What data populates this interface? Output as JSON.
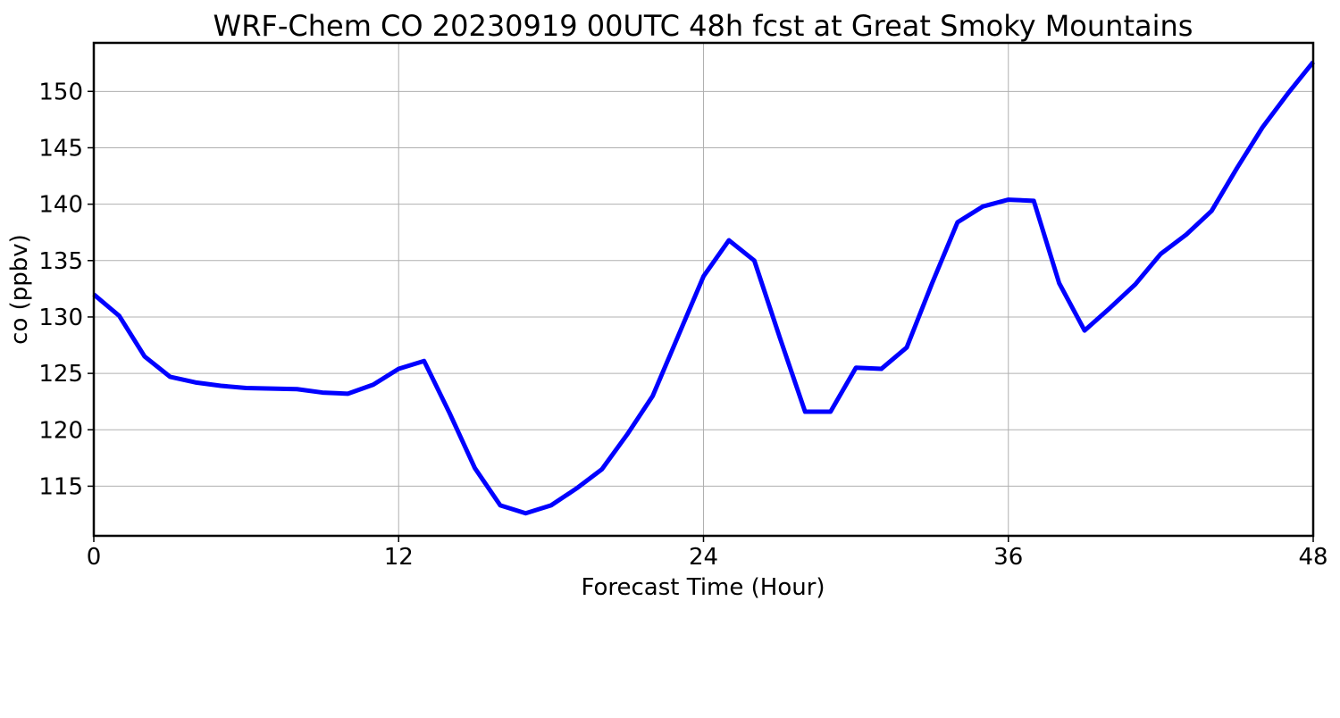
{
  "chart_data": {
    "type": "line",
    "title": "WRF-Chem CO  20230919 00UTC 48h fcst at Great Smoky Mountains",
    "xlabel": "Forecast Time (Hour)",
    "ylabel": "co  (ppbv)",
    "xlim": [
      0,
      48
    ],
    "ylim": [
      110.6,
      154.3
    ],
    "xticks": [
      0,
      12,
      24,
      36,
      48
    ],
    "yticks": [
      115,
      120,
      125,
      130,
      135,
      140,
      145,
      150
    ],
    "grid": true,
    "legend": "none",
    "series": [
      {
        "color": "#0000ff",
        "x": [
          0,
          1,
          2,
          3,
          4,
          5,
          6,
          7,
          8,
          9,
          10,
          11,
          12,
          13,
          14,
          15,
          16,
          17,
          18,
          19,
          20,
          21,
          22,
          23,
          24,
          25,
          26,
          27,
          28,
          29,
          30,
          31,
          32,
          33,
          34,
          35,
          36,
          37,
          38,
          39,
          40,
          41,
          42,
          43,
          44,
          45,
          46,
          47,
          48
        ],
        "y": [
          132.0,
          130.1,
          126.5,
          124.7,
          124.2,
          123.9,
          123.7,
          123.65,
          123.6,
          123.3,
          123.2,
          124.0,
          125.4,
          126.1,
          121.5,
          116.6,
          113.3,
          112.6,
          113.3,
          114.8,
          116.5,
          119.6,
          123.0,
          128.3,
          133.6,
          136.8,
          135.0,
          128.2,
          121.6,
          121.6,
          125.5,
          125.4,
          127.3,
          133.0,
          138.4,
          139.8,
          140.4,
          140.3,
          133.0,
          128.8,
          130.8,
          132.9,
          135.6,
          137.3,
          139.4,
          143.2,
          146.8,
          149.8,
          152.6
        ]
      }
    ]
  }
}
